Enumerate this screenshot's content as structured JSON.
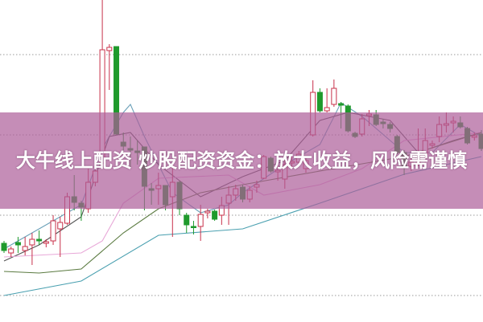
{
  "banner": {
    "title": "大牛线上配资 炒股配资资金：放大收益，风险需谨慎"
  },
  "chart_data": {
    "type": "candlestick",
    "title": "",
    "xlabel": "",
    "ylabel": "",
    "axis_labels_shown": false,
    "grid": "horizontal dotted",
    "gridlines": [
      32,
      132,
      232,
      332
    ],
    "ylim": [
      0,
      400
    ],
    "colors": {
      "up": "#c8304a",
      "down": "#1f9a2c",
      "grid": "#999999"
    },
    "candles_ohlc": [
      [
        97,
        100,
        85,
        88
      ],
      [
        85,
        93,
        80,
        90
      ],
      [
        98,
        105,
        85,
        95
      ],
      [
        88,
        105,
        82,
        93
      ],
      [
        95,
        110,
        70,
        102
      ],
      [
        102,
        113,
        95,
        100
      ],
      [
        97,
        102,
        92,
        99
      ],
      [
        100,
        132,
        95,
        125
      ],
      [
        115,
        130,
        80,
        123
      ],
      [
        122,
        160,
        120,
        155
      ],
      [
        155,
        182,
        138,
        148
      ],
      [
        147,
        150,
        125,
        142
      ],
      [
        140,
        190,
        135,
        173
      ],
      [
        173,
        195,
        168,
        187
      ],
      [
        197,
        400,
        195,
        338
      ],
      [
        337,
        345,
        288,
        341
      ],
      [
        342,
        342,
        233,
        233
      ],
      [
        223,
        235,
        210,
        218
      ],
      [
        215,
        230,
        192,
        213
      ],
      [
        212,
        225,
        195,
        210
      ],
      [
        217,
        217,
        138,
        168
      ],
      [
        165,
        172,
        145,
        163
      ],
      [
        165,
        185,
        145,
        169
      ],
      [
        169,
        169,
        138,
        145
      ],
      [
        155,
        195,
        105,
        173
      ],
      [
        173,
        175,
        132,
        140
      ],
      [
        132,
        135,
        110,
        120
      ],
      [
        118,
        125,
        108,
        117
      ],
      [
        118,
        145,
        100,
        133
      ],
      [
        135,
        140,
        128,
        137
      ],
      [
        137,
        139,
        125,
        127
      ],
      [
        132,
        155,
        120,
        144
      ],
      [
        147,
        168,
        120,
        157
      ],
      [
        157,
        170,
        150,
        165
      ],
      [
        167,
        170,
        148,
        152
      ],
      [
        152,
        168,
        148,
        163
      ],
      [
        167,
        175,
        160,
        170
      ],
      [
        178,
        207,
        177,
        205
      ],
      [
        203,
        205,
        185,
        187
      ],
      [
        186,
        195,
        175,
        188
      ],
      [
        177,
        205,
        165,
        195
      ],
      [
        197,
        205,
        190,
        199
      ],
      [
        198,
        212,
        195,
        208
      ],
      [
        190,
        205,
        185,
        200
      ],
      [
        232,
        300,
        230,
        285
      ],
      [
        285,
        290,
        260,
        262
      ],
      [
        262,
        290,
        260,
        266
      ],
      [
        270,
        301,
        267,
        290
      ],
      [
        271,
        273,
        240,
        269
      ],
      [
        268,
        270,
        235,
        237
      ],
      [
        234,
        236,
        228,
        230
      ],
      [
        233,
        258,
        230,
        252
      ],
      [
        256,
        263,
        243,
        258
      ],
      [
        257,
        263,
        243,
        245
      ],
      [
        248,
        252,
        240,
        246
      ],
      [
        245,
        248,
        235,
        240
      ],
      [
        230,
        232,
        208,
        210
      ],
      [
        210,
        213,
        182,
        192
      ],
      [
        193,
        207,
        187,
        198
      ],
      [
        198,
        240,
        193,
        207
      ],
      [
        208,
        240,
        192,
        225
      ],
      [
        219,
        225,
        215,
        221
      ],
      [
        230,
        255,
        223,
        245
      ],
      [
        244,
        260,
        235,
        246
      ],
      [
        247,
        255,
        235,
        249
      ],
      [
        247,
        255,
        240,
        242
      ],
      [
        240,
        242,
        220,
        222
      ],
      [
        229,
        235,
        225,
        231
      ],
      [
        233,
        238,
        212,
        215
      ]
    ],
    "moving_averages": [
      {
        "color": "#6aa0b8",
        "points": [
          [
            0,
            90
          ],
          [
            11,
            145
          ],
          [
            14,
            215
          ],
          [
            17,
            260
          ],
          [
            18,
            270
          ],
          [
            20,
            230
          ],
          [
            24,
            160
          ],
          [
            28,
            135
          ],
          [
            32,
            145
          ],
          [
            34,
            160
          ],
          [
            40,
            195
          ],
          [
            45,
            220
          ],
          [
            48,
            272
          ],
          [
            51,
            255
          ],
          [
            57,
            210
          ],
          [
            61,
            210
          ],
          [
            65,
            245
          ],
          [
            68,
            230
          ]
        ]
      },
      {
        "color": "#555555",
        "points": [
          [
            0,
            75
          ],
          [
            5,
            95
          ],
          [
            11,
            130
          ],
          [
            13,
            180
          ],
          [
            15,
            230
          ],
          [
            18,
            235
          ],
          [
            22,
            195
          ],
          [
            28,
            155
          ],
          [
            34,
            180
          ],
          [
            40,
            200
          ],
          [
            45,
            250
          ],
          [
            49,
            260
          ],
          [
            55,
            250
          ],
          [
            59,
            210
          ],
          [
            64,
            225
          ],
          [
            68,
            235
          ]
        ]
      },
      {
        "color": "#e8a8d8",
        "points": [
          [
            0,
            80
          ],
          [
            11,
            85
          ],
          [
            14,
            100
          ],
          [
            17,
            147
          ],
          [
            22,
            178
          ],
          [
            32,
            182
          ],
          [
            37,
            157
          ],
          [
            45,
            170
          ],
          [
            51,
            190
          ],
          [
            57,
            225
          ],
          [
            68,
            235
          ]
        ]
      },
      {
        "color": "#5a7a40",
        "points": [
          [
            0,
            62
          ],
          [
            5,
            60
          ],
          [
            11,
            65
          ],
          [
            17,
            110
          ],
          [
            22,
            140
          ],
          [
            28,
            160
          ],
          [
            34,
            170
          ],
          [
            45,
            187
          ],
          [
            57,
            205
          ],
          [
            68,
            235
          ]
        ]
      },
      {
        "color": "#4aa0b0",
        "points": [
          [
            0,
            32
          ],
          [
            11,
            50
          ],
          [
            22,
            107
          ],
          [
            34,
            115
          ],
          [
            45,
            147
          ],
          [
            57,
            183
          ],
          [
            68,
            205
          ]
        ]
      }
    ]
  }
}
